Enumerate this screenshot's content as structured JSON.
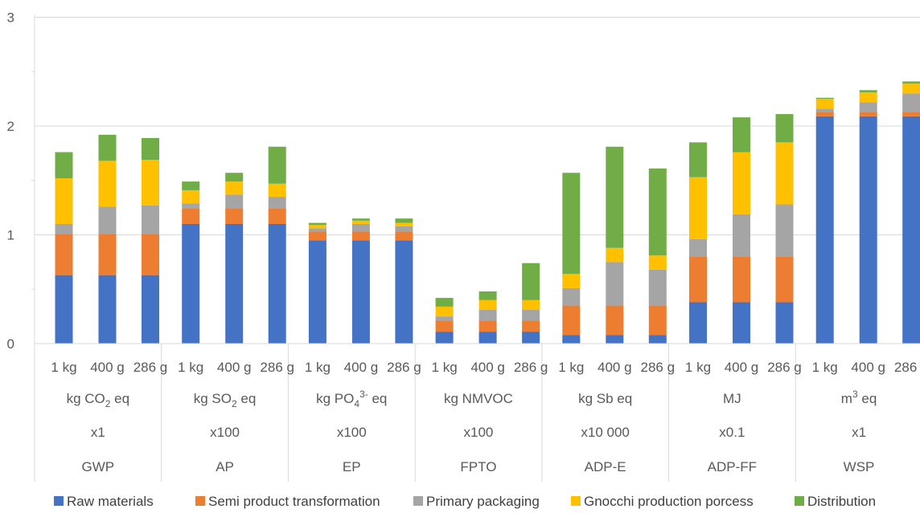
{
  "chart_data": {
    "type": "bar",
    "stacked": true,
    "ylim": [
      0,
      3
    ],
    "yticks": [
      "0",
      "1",
      "2",
      "3"
    ],
    "grid": true,
    "legend_position": "bottom",
    "groups": [
      {
        "indicator": "GWP",
        "unit": [
          "kg CO",
          "2",
          " eq"
        ],
        "unit_script": "sub",
        "scale": "x1"
      },
      {
        "indicator": "AP",
        "unit": [
          "kg SO",
          "2",
          " eq"
        ],
        "unit_script": "sub",
        "scale": "x100"
      },
      {
        "indicator": "EP",
        "unit": [
          "kg PO",
          "4",
          "3-",
          " eq"
        ],
        "unit_script": "subsup",
        "scale": "x100"
      },
      {
        "indicator": "FPTO",
        "unit": [
          "kg NMVOC"
        ],
        "unit_script": "none",
        "scale": "x100"
      },
      {
        "indicator": "ADP-E",
        "unit": [
          "kg Sb eq"
        ],
        "unit_script": "none",
        "scale": "x10 000"
      },
      {
        "indicator": "ADP-FF",
        "unit": [
          "MJ"
        ],
        "unit_script": "none",
        "scale": "x0.1"
      },
      {
        "indicator": "WSP",
        "unit": [
          "m",
          "3",
          " eq"
        ],
        "unit_script": "sup",
        "scale": "x1"
      }
    ],
    "categories": [
      "1 kg",
      "400 g",
      "286 g"
    ],
    "series": [
      {
        "name": "Raw materials",
        "color": "#4472C4",
        "values": [
          [
            0.63,
            0.63,
            0.63
          ],
          [
            1.1,
            1.1,
            1.1
          ],
          [
            0.95,
            0.95,
            0.95
          ],
          [
            0.11,
            0.11,
            0.11
          ],
          [
            0.08,
            0.08,
            0.08
          ],
          [
            0.38,
            0.38,
            0.38
          ],
          [
            2.09,
            2.09,
            2.09
          ]
        ]
      },
      {
        "name": "Semi product transformation",
        "color": "#ED7D31",
        "values": [
          [
            0.38,
            0.38,
            0.38
          ],
          [
            0.14,
            0.14,
            0.14
          ],
          [
            0.08,
            0.08,
            0.08
          ],
          [
            0.1,
            0.1,
            0.1
          ],
          [
            0.27,
            0.27,
            0.27
          ],
          [
            0.42,
            0.42,
            0.42
          ],
          [
            0.04,
            0.04,
            0.04
          ]
        ]
      },
      {
        "name": "Primary packaging",
        "color": "#A5A5A5",
        "values": [
          [
            0.09,
            0.25,
            0.26
          ],
          [
            0.05,
            0.13,
            0.11
          ],
          [
            0.03,
            0.07,
            0.05
          ],
          [
            0.04,
            0.1,
            0.1
          ],
          [
            0.16,
            0.4,
            0.33
          ],
          [
            0.16,
            0.39,
            0.48
          ],
          [
            0.03,
            0.09,
            0.17
          ]
        ]
      },
      {
        "name": "Gnocchi production porcess",
        "color": "#FFC000",
        "values": [
          [
            0.42,
            0.42,
            0.42
          ],
          [
            0.12,
            0.12,
            0.12
          ],
          [
            0.03,
            0.03,
            0.03
          ],
          [
            0.09,
            0.09,
            0.09
          ],
          [
            0.13,
            0.13,
            0.13
          ],
          [
            0.57,
            0.57,
            0.57
          ],
          [
            0.09,
            0.09,
            0.09
          ]
        ]
      },
      {
        "name": "Distribution",
        "color": "#70AD47",
        "values": [
          [
            0.24,
            0.24,
            0.2
          ],
          [
            0.08,
            0.08,
            0.34
          ],
          [
            0.02,
            0.02,
            0.04
          ],
          [
            0.08,
            0.08,
            0.34
          ],
          [
            0.93,
            0.93,
            0.8
          ],
          [
            0.32,
            0.32,
            0.26
          ],
          [
            0.01,
            0.02,
            0.02
          ]
        ]
      }
    ]
  }
}
